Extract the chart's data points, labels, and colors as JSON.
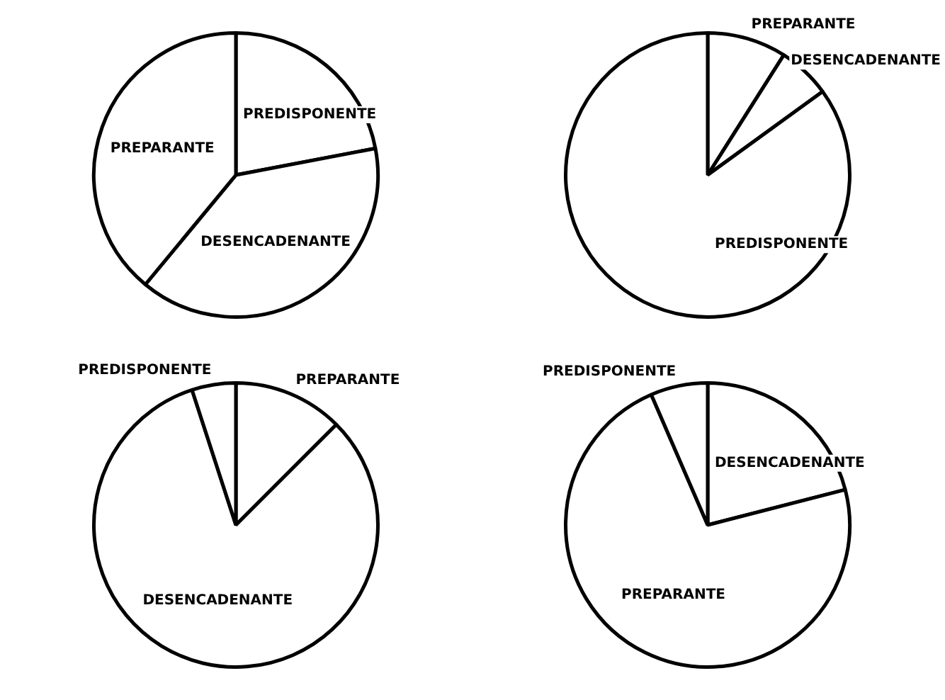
{
  "chart_data": [
    {
      "type": "pie",
      "categories": [
        "PREDISPONENTE",
        "DESENCADENANTE",
        "PREPARANTE"
      ],
      "values": [
        22,
        39,
        39
      ],
      "colors": [
        "#ffffff",
        "#ffffff",
        "#ffffff"
      ],
      "legend": false
    },
    {
      "type": "pie",
      "categories": [
        "PREPARANTE",
        "DESENCADENANTE",
        "PREDISPONENTE"
      ],
      "values": [
        9,
        6,
        85
      ],
      "colors": [
        "#ffffff",
        "#ffffff",
        "#ffffff"
      ],
      "legend": false
    },
    {
      "type": "pie",
      "categories": [
        "PREPARANTE",
        "DESENCADENANTE",
        "PREDISPONENTE"
      ],
      "values": [
        12.5,
        82.5,
        5
      ],
      "colors": [
        "#ffffff",
        "#ffffff",
        "#ffffff"
      ],
      "legend": false
    },
    {
      "type": "pie",
      "categories": [
        "DESENCADENANTE",
        "PREPARANTE",
        "PREDISPONENTE"
      ],
      "values": [
        21,
        72.5,
        6.5
      ],
      "colors": [
        "#ffffff",
        "#ffffff",
        "#ffffff"
      ],
      "legend": false
    }
  ]
}
